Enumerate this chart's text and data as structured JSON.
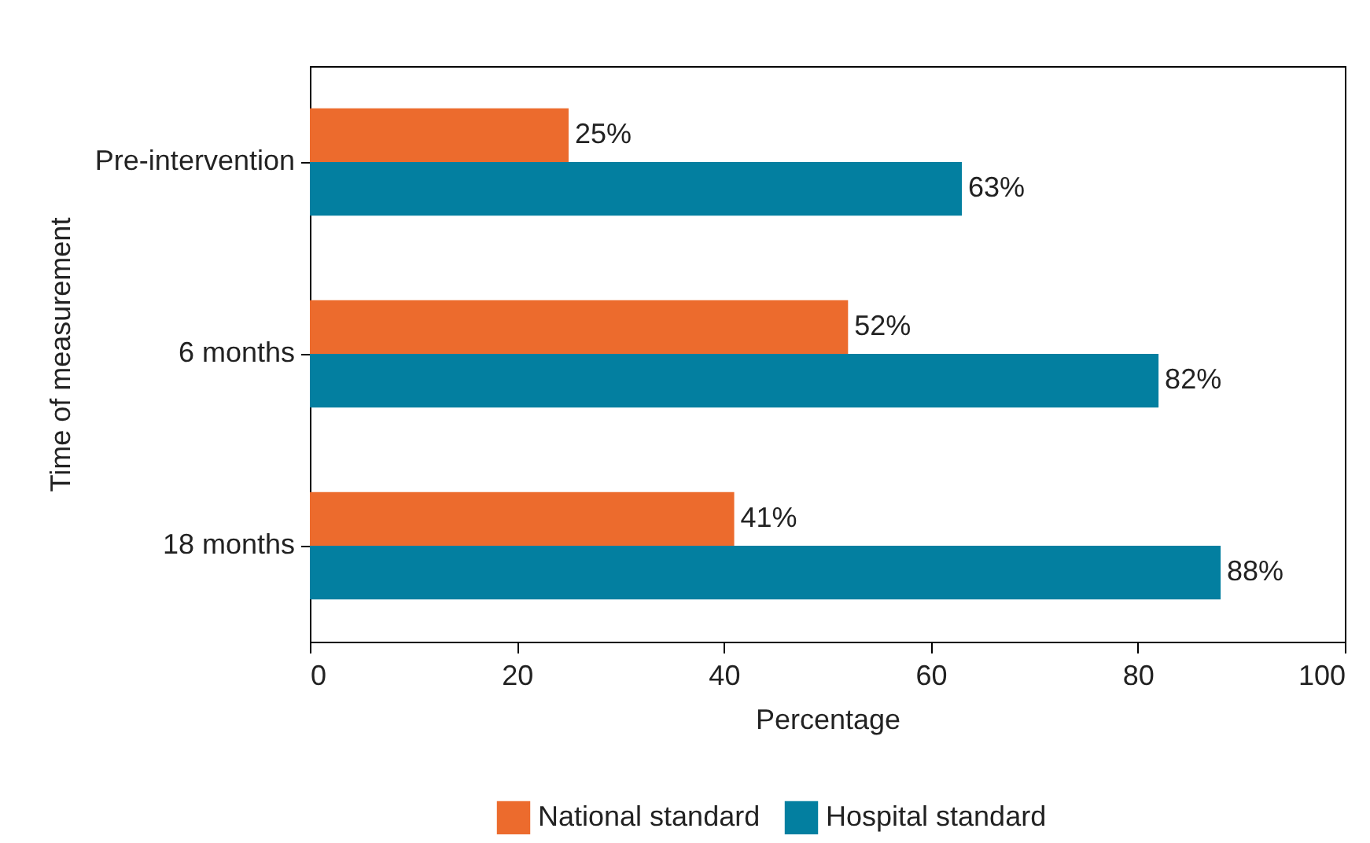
{
  "chart_data": {
    "type": "bar",
    "orientation": "horizontal",
    "xlabel": "Percentage",
    "ylabel": "Time of measurement",
    "categories": [
      "Pre-intervention",
      "6 months",
      "18 months"
    ],
    "series": [
      {
        "name": "National standard",
        "color": "#ec6b2d",
        "values": [
          25,
          52,
          41
        ],
        "value_labels": [
          "25%",
          "52%",
          "41%"
        ]
      },
      {
        "name": "Hospital standard",
        "color": "#037fa0",
        "values": [
          63,
          82,
          88
        ],
        "value_labels": [
          "63%",
          "82%",
          "88%"
        ]
      }
    ],
    "xlim": [
      0,
      100
    ],
    "xticks": [
      0,
      20,
      40,
      60,
      80,
      100
    ],
    "legend": "bottom"
  }
}
